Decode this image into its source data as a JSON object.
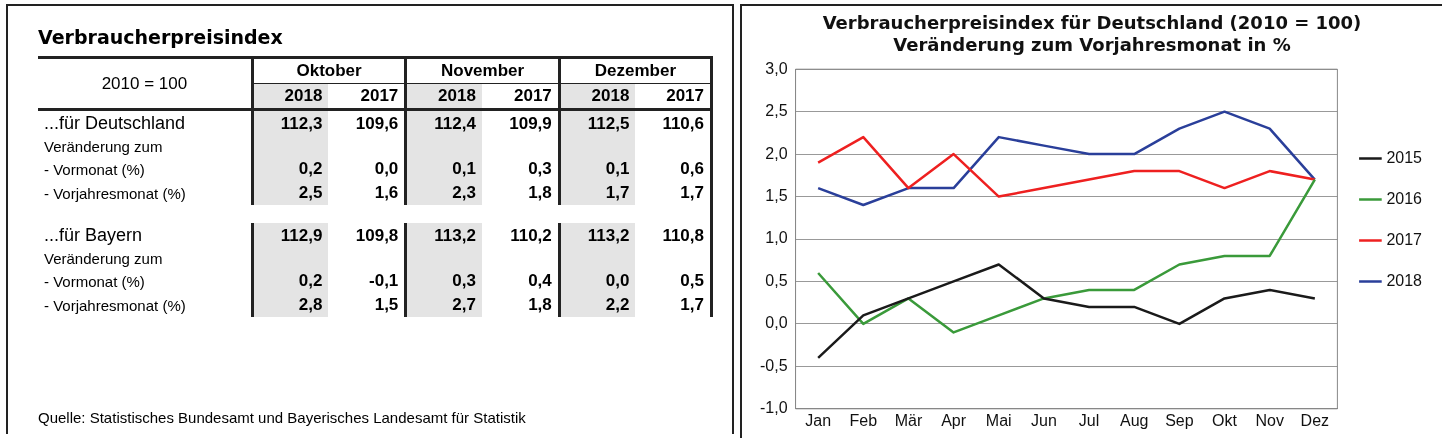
{
  "chart_data": [
    {
      "type": "other",
      "title": "Verbraucherpreisindex",
      "annotations": [
        "2010 = 100",
        "Oktober",
        "November",
        "Dezember",
        "Quelle: Statistisches Bundesamt und Bayerisches Landesamt für Statistik"
      ],
      "categories": [
        "2018",
        "2017",
        "2018",
        "2017",
        "2018",
        "2017"
      ],
      "y_categories": [
        "...für Deutschland",
        "Veränderung zum",
        "- Vormonat (%)",
        "- Vorjahresmonat (%)",
        "...für Bayern",
        "Veränderung zum",
        "- Vormonat (%)",
        "- Vorjahresmonat (%)"
      ],
      "cell_labels": [
        [
          "112,3",
          "109,6",
          "112,4",
          "109,9",
          "112,5",
          "110,6"
        ],
        [
          null,
          null,
          null,
          null,
          null,
          null
        ],
        [
          "0,2",
          "0,0",
          "0,1",
          "0,3",
          "0,1",
          "0,6"
        ],
        [
          "2,5",
          "1,6",
          "2,3",
          "1,8",
          "1,7",
          "1,7"
        ],
        [
          "112,9",
          "109,8",
          "113,2",
          "110,2",
          "113,2",
          "110,8"
        ],
        [
          null,
          null,
          null,
          null,
          null,
          null
        ],
        [
          "0,2",
          "-0,1",
          "0,3",
          "0,4",
          "0,0",
          "0,5"
        ],
        [
          "2,8",
          "1,5",
          "2,7",
          "1,8",
          "2,2",
          "1,7"
        ]
      ]
    },
    {
      "type": "line",
      "title": "Verbraucherpreisindex für Deutschland (2010 = 100)",
      "subtitle": "Veränderung zum Vorjahresmonat in %",
      "categories": [
        "Jan",
        "Feb",
        "Mär",
        "Apr",
        "Mai",
        "Jun",
        "Jul",
        "Aug",
        "Sep",
        "Okt",
        "Nov",
        "Dez"
      ],
      "series": [
        {
          "name": "2015",
          "color": "#1a1a1a",
          "values": [
            -0.4,
            0.1,
            0.3,
            0.5,
            0.7,
            0.3,
            0.2,
            0.2,
            0.0,
            0.3,
            0.4,
            0.3
          ]
        },
        {
          "name": "2016",
          "color": "#3a9a3a",
          "values": [
            0.6,
            0.0,
            0.3,
            -0.1,
            0.1,
            0.3,
            0.4,
            0.4,
            0.7,
            0.8,
            0.8,
            1.7
          ]
        },
        {
          "name": "2017",
          "color": "#ee2020",
          "values": [
            1.9,
            2.2,
            1.6,
            2.0,
            1.5,
            1.6,
            1.7,
            1.8,
            1.8,
            1.6,
            1.8,
            1.7
          ]
        },
        {
          "name": "2018",
          "color": "#2a3f9a",
          "values": [
            1.6,
            1.4,
            1.6,
            1.6,
            2.2,
            2.1,
            2.0,
            2.0,
            2.3,
            2.5,
            2.3,
            1.7
          ]
        }
      ],
      "ylim": [
        -1,
        3
      ],
      "yticks": [
        {
          "value": -1,
          "label": "-1,0"
        },
        {
          "value": -0.5,
          "label": "-0,5"
        },
        {
          "value": 0,
          "label": "0,0"
        },
        {
          "value": 0.5,
          "label": "0,5"
        },
        {
          "value": 1,
          "label": "1,0"
        },
        {
          "value": 1.5,
          "label": "1,5"
        },
        {
          "value": 2,
          "label": "2,0"
        },
        {
          "value": 2.5,
          "label": "2,5"
        },
        {
          "value": 3,
          "label": "3,0"
        }
      ],
      "grid": "y",
      "legend": "right",
      "marker": "none",
      "line_style": "solid"
    }
  ]
}
